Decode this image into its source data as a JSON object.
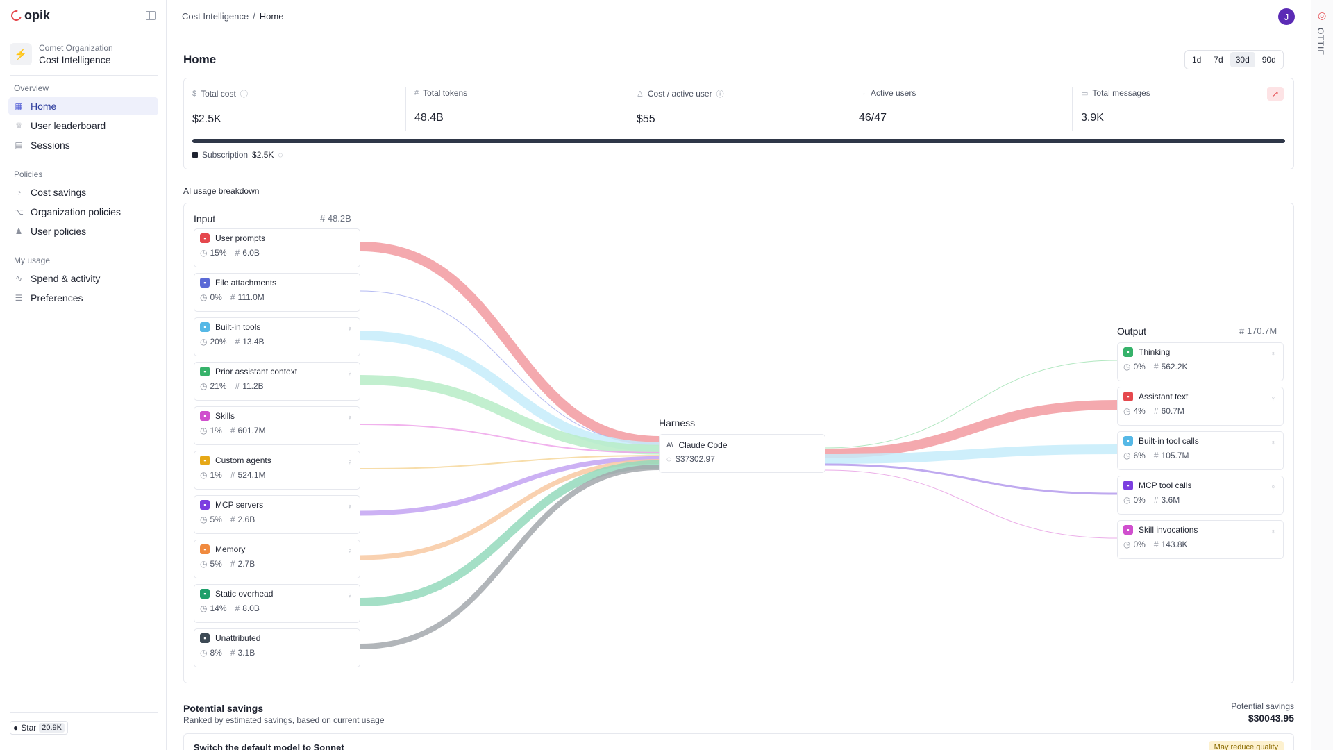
{
  "app": {
    "name": "opik"
  },
  "sidebar": {
    "org_sub": "Comet Organization",
    "org_name": "Cost Intelligence",
    "groups": [
      {
        "title": "Overview",
        "items": [
          {
            "label": "Home",
            "icon": "home-grid-icon",
            "active": true
          },
          {
            "label": "User leaderboard",
            "icon": "trophy-icon"
          },
          {
            "label": "Sessions",
            "icon": "sessions-icon"
          }
        ]
      },
      {
        "title": "Policies",
        "items": [
          {
            "label": "Cost savings",
            "icon": "piggy-bank-icon"
          },
          {
            "label": "Organization policies",
            "icon": "org-tree-icon"
          },
          {
            "label": "User policies",
            "icon": "users-icon"
          }
        ]
      },
      {
        "title": "My usage",
        "items": [
          {
            "label": "Spend & activity",
            "icon": "activity-icon"
          },
          {
            "label": "Preferences",
            "icon": "sliders-icon"
          }
        ]
      }
    ],
    "github": {
      "label": "Star",
      "count": "20.9K"
    }
  },
  "topbar": {
    "breadcrumb": [
      "Cost Intelligence",
      "/",
      "Home"
    ],
    "avatar_initial": "J"
  },
  "rail": {
    "text": "OTTIE"
  },
  "page": {
    "title": "Home",
    "ranges": [
      {
        "label": "1d"
      },
      {
        "label": "7d"
      },
      {
        "label": "30d",
        "active": true
      },
      {
        "label": "90d"
      }
    ]
  },
  "metrics": [
    {
      "label": "Total cost",
      "value": "$2.5K",
      "icon": "dollar-icon",
      "info": true
    },
    {
      "label": "Total tokens",
      "value": "48.4B",
      "icon": "hash-icon"
    },
    {
      "label": "Cost / active user",
      "value": "$55",
      "icon": "user-icon",
      "info": true
    },
    {
      "label": "Active users",
      "value": "46/47",
      "icon": "login-icon"
    },
    {
      "label": "Total messages",
      "value": "3.9K",
      "icon": "messages-icon"
    }
  ],
  "cost_breakdown": {
    "label": "Subscription",
    "value": "$2.5K",
    "fill_fraction": 1.0
  },
  "usage": {
    "title": "AI usage breakdown",
    "input": {
      "heading": "Input",
      "total": "# 48.2B",
      "nodes": [
        {
          "label": "User prompts",
          "pct": "15%",
          "tokens": "6.0B",
          "color": "#f29aa0",
          "icon_bg": "#e5484d",
          "hint": false,
          "weight": 14
        },
        {
          "label": "File attachments",
          "pct": "0%",
          "tokens": "111.0M",
          "color": "#a7aef0",
          "icon_bg": "#5b6ad6",
          "hint": false,
          "weight": 1
        },
        {
          "label": "Built-in tools",
          "pct": "20%",
          "tokens": "13.4B",
          "color": "#c6ecfa",
          "icon_bg": "#56b8e6",
          "hint": true,
          "weight": 14
        },
        {
          "label": "Prior assistant context",
          "pct": "21%",
          "tokens": "11.2B",
          "color": "#b7ecc7",
          "icon_bg": "#36b26a",
          "hint": true,
          "weight": 14
        },
        {
          "label": "Skills",
          "pct": "1%",
          "tokens": "601.7M",
          "color": "#efa5ea",
          "icon_bg": "#d04fce",
          "hint": true,
          "weight": 2
        },
        {
          "label": "Custom agents",
          "pct": "1%",
          "tokens": "524.1M",
          "color": "#f6d79b",
          "icon_bg": "#e6a817",
          "hint": true,
          "weight": 2
        },
        {
          "label": "MCP servers",
          "pct": "5%",
          "tokens": "2.6B",
          "color": "#c3a3f2",
          "icon_bg": "#7c3ee0",
          "hint": true,
          "weight": 7
        },
        {
          "label": "Memory",
          "pct": "5%",
          "tokens": "2.7B",
          "color": "#f8c9a2",
          "icon_bg": "#f08a3e",
          "hint": true,
          "weight": 7
        },
        {
          "label": "Static overhead",
          "pct": "14%",
          "tokens": "8.0B",
          "color": "#94d9bc",
          "icon_bg": "#1e9f6a",
          "hint": true,
          "weight": 12
        },
        {
          "label": "Unattributed",
          "pct": "8%",
          "tokens": "3.1B",
          "color": "#a3a8ad",
          "icon_bg": "#3d4a55",
          "hint": false,
          "weight": 8
        }
      ]
    },
    "harness": {
      "heading": "Harness",
      "name": "Claude Code",
      "cost": "$37302.97"
    },
    "output": {
      "heading": "Output",
      "total": "# 170.7M",
      "nodes": [
        {
          "label": "Thinking",
          "pct": "0%",
          "tokens": "562.2K",
          "color": "#a3e3b5",
          "icon_bg": "#36b26a",
          "hint": true,
          "weight": 1
        },
        {
          "label": "Assistant text",
          "pct": "4%",
          "tokens": "60.7M",
          "color": "#f29aa0",
          "icon_bg": "#e5484d",
          "hint": true,
          "weight": 14
        },
        {
          "label": "Built-in tool calls",
          "pct": "6%",
          "tokens": "105.7M",
          "color": "#c6ecfa",
          "icon_bg": "#56b8e6",
          "hint": true,
          "weight": 14
        },
        {
          "label": "MCP tool calls",
          "pct": "0%",
          "tokens": "3.6M",
          "color": "#b49aec",
          "icon_bg": "#7c3ee0",
          "hint": true,
          "weight": 3
        },
        {
          "label": "Skill invocations",
          "pct": "0%",
          "tokens": "143.8K",
          "color": "#e7a0e4",
          "icon_bg": "#d04fce",
          "hint": true,
          "weight": 1
        }
      ]
    }
  },
  "savings": {
    "title": "Potential savings",
    "subtitle": "Ranked by estimated savings, based on current usage",
    "label": "Potential savings",
    "value": "$30043.95",
    "first_card": {
      "title": "Switch the default model to Sonnet",
      "badge": "May reduce quality"
    }
  }
}
